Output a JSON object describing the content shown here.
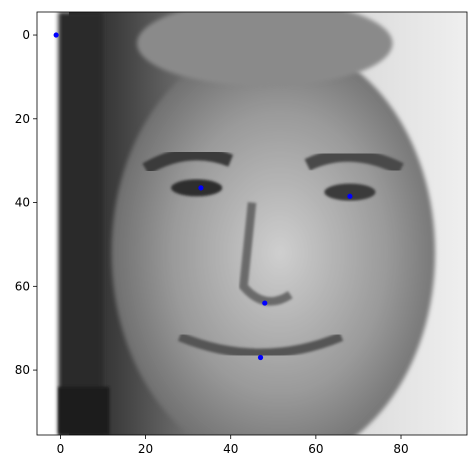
{
  "chart_data": {
    "type": "scatter",
    "title": "",
    "xlabel": "",
    "ylabel": "",
    "xlim": [
      -5.5,
      95.5
    ],
    "ylim": [
      95.5,
      -5.5
    ],
    "y_inverted": true,
    "grid": false,
    "background": "grayscale face image (96x96 pixels) shown under the points",
    "x_ticks": [
      0,
      20,
      40,
      60,
      80
    ],
    "y_ticks": [
      0,
      20,
      40,
      60,
      80
    ],
    "series": [
      {
        "color": "#0000ff",
        "marker": "circle",
        "points": [
          {
            "x": -1,
            "y": 0
          },
          {
            "x": 33,
            "y": 36.5
          },
          {
            "x": 68,
            "y": 38.5
          },
          {
            "x": 48,
            "y": 64
          },
          {
            "x": 47,
            "y": 77
          }
        ]
      }
    ]
  }
}
